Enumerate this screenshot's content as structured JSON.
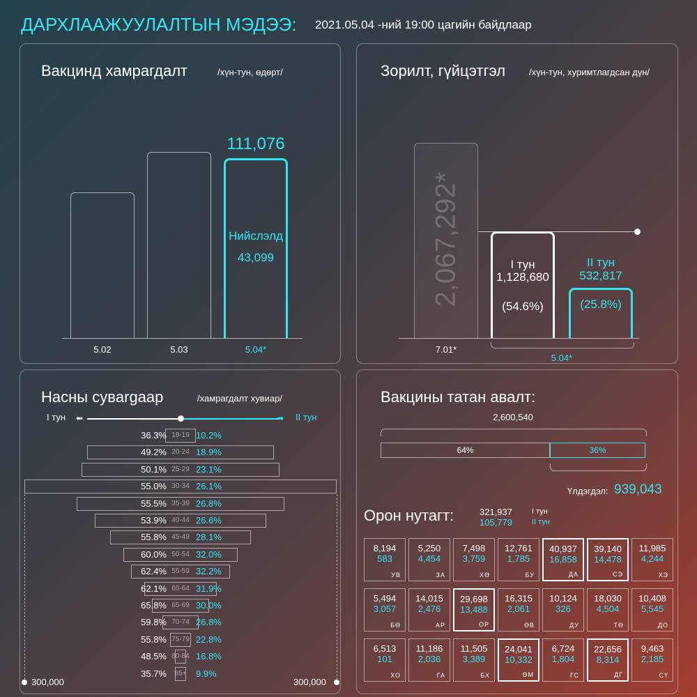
{
  "header": {
    "title": "ДАРХЛААЖУУЛАЛТЫН МЭДЭЭ:",
    "subtitle": "2021.05.04 -ний 19:00 цагийн байдлаар"
  },
  "chart_data": [
    {
      "type": "bar",
      "title": "Вакцинд хамрагдалт",
      "subtitle": "/хүн-тун, өдөрт/",
      "categories": [
        "5.02",
        "5.03",
        "5.04*"
      ],
      "values": [
        90000,
        115000,
        111076
      ],
      "value_labels": [
        "",
        "",
        "111,076"
      ],
      "annotation": {
        "label": "Нийслэлд",
        "value": "43,099"
      },
      "ylim": [
        0,
        130000
      ]
    },
    {
      "type": "bar",
      "title": "Зорилт, гүйцэтгэл",
      "subtitle": "/хүн-тун, хуримтлагдсан дүн/",
      "target": {
        "category": "7.01*",
        "value": 2067292,
        "label": "2,067,292*"
      },
      "target_line": 1128680,
      "series": [
        {
          "name": "I тун",
          "value": 1128680,
          "value_label": "1,128,680",
          "percent": "(54.6%)"
        },
        {
          "name": "II тун",
          "value": 532817,
          "value_label": "532,817",
          "percent": "(25.8%)"
        }
      ],
      "group_label": "5.04*",
      "ylim": [
        0,
        2067292
      ]
    },
    {
      "type": "bar",
      "title": "Насны сувargaар",
      "subtitle": "/хамрагдалт хувиар/",
      "legend_left": "I тун",
      "legend_right": "II тун",
      "axis_left": "300,000",
      "axis_right": "300,000",
      "categories": [
        "18-19",
        "20-24",
        "25-29",
        "30-34",
        "35-39",
        "40-44",
        "45-49",
        "50-54",
        "55-59",
        "60-64",
        "65-69",
        "70-74",
        "75-79",
        "80-84",
        "85+"
      ],
      "series": [
        {
          "name": "I тун",
          "values": [
            36.3,
            49.2,
            50.1,
            55.0,
            55.5,
            53.9,
            55.8,
            60.0,
            62.4,
            62.1,
            65.8,
            59.8,
            55.8,
            48.5,
            35.7
          ]
        },
        {
          "name": "II тун",
          "values": [
            10.2,
            18.9,
            23.1,
            26.1,
            26.8,
            26.6,
            28.1,
            32.0,
            32.2,
            31.9,
            30.0,
            26.8,
            22.8,
            16.8,
            9.9
          ]
        }
      ],
      "value_labels_1": [
        "36.3%",
        "49.2%",
        "50.1%",
        "55.0%",
        "55.5%",
        "53.9%",
        "55.8%",
        "60.0%",
        "62.4%",
        "62.1%",
        "65.8%",
        "59.8%",
        "55.8%",
        "48.5%",
        "35.7%"
      ],
      "value_labels_2": [
        "10.2%",
        "18.9%",
        "23.1%",
        "26.1%",
        "26.8%",
        "26.6%",
        "28.1%",
        "32.0%",
        "32.2%",
        "31.9%",
        "30.0%",
        "26.8%",
        "22.8%",
        "16.8%",
        "9.9%"
      ],
      "population": [
        30000,
        180000,
        190000,
        300000,
        200000,
        165000,
        135000,
        110000,
        95000,
        70000,
        55000,
        35000,
        20000,
        10000,
        5000
      ]
    },
    {
      "type": "bar",
      "title": "Вакцины татан авалт:",
      "total": "2,600,540",
      "segments": [
        {
          "label": "64%",
          "value": 64
        },
        {
          "label": "36%",
          "value": 36
        }
      ],
      "remaining_label": "Үлдэгдэл:",
      "remaining_value": "939,043"
    }
  ],
  "local": {
    "title": "Орон нутагт:",
    "dose1_total": "321,937",
    "dose2_total": "105,779",
    "dose1_label": "I тун",
    "dose2_label": "II тун",
    "provinces": [
      {
        "d1": "8,194",
        "d2": "583",
        "code": "УВ"
      },
      {
        "d1": "5,250",
        "d2": "4,454",
        "code": "ЗА"
      },
      {
        "d1": "7,498",
        "d2": "3,759",
        "code": "ХӨ"
      },
      {
        "d1": "12,761",
        "d2": "1,785",
        "code": "БУ"
      },
      {
        "d1": "40,937",
        "d2": "16,858",
        "code": "ДА"
      },
      {
        "d1": "39,140",
        "d2": "14,478",
        "code": "СЭ"
      },
      {
        "d1": "11,985",
        "d2": "4,244",
        "code": "ХЭ"
      },
      {
        "d1": "5,494",
        "d2": "3,057",
        "code": "БӨ"
      },
      {
        "d1": "14,015",
        "d2": "2,476",
        "code": "АР"
      },
      {
        "d1": "29,698",
        "d2": "13,488",
        "code": "ОР"
      },
      {
        "d1": "16,315",
        "d2": "2,061",
        "code": "ӨВ"
      },
      {
        "d1": "10,124",
        "d2": "326",
        "code": "ДУ"
      },
      {
        "d1": "18,030",
        "d2": "4,504",
        "code": "ТӨ"
      },
      {
        "d1": "10,408",
        "d2": "5,545",
        "code": "ДО"
      },
      {
        "d1": "6,513",
        "d2": "101",
        "code": "ХО"
      },
      {
        "d1": "11,186",
        "d2": "2,036",
        "code": "ГА"
      },
      {
        "d1": "11,505",
        "d2": "3,389",
        "code": "БХ"
      },
      {
        "d1": "24,041",
        "d2": "10,332",
        "code": "ӨМ"
      },
      {
        "d1": "6,724",
        "d2": "1,804",
        "code": "ГС"
      },
      {
        "d1": "22,656",
        "d2": "8,314",
        "code": "ДГ"
      },
      {
        "d1": "9,463",
        "d2": "2,185",
        "code": "СҮ"
      }
    ]
  }
}
